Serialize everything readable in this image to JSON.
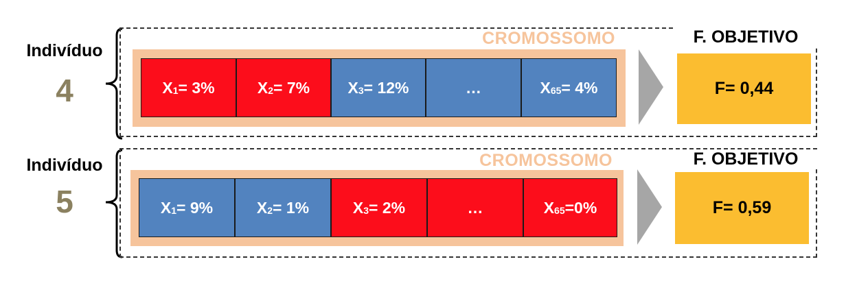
{
  "colors": {
    "red": "#fc0d1b",
    "blue": "#5283bf",
    "chromosome_bg": "#f6c49c",
    "objective": "#fbbd30",
    "number": "#8b8160"
  },
  "individuals": [
    {
      "label": "Indivíduo",
      "number": "4",
      "chromosome_title": "CROMOSSOMO",
      "objective_title": "F. OBJETIVO",
      "objective_value": "F= 0,44",
      "genes": [
        {
          "base": "X",
          "sub": "1",
          "rest": "= 3%",
          "color": "#fc0d1b"
        },
        {
          "base": "X",
          "sub": "2",
          "rest": "= 7%",
          "color": "#fc0d1b"
        },
        {
          "base": "X",
          "sub": "3",
          "rest": "= 12%",
          "color": "#5283bf"
        },
        {
          "base": "…",
          "sub": "",
          "rest": "",
          "color": "#5283bf"
        },
        {
          "base": "X",
          "sub": "65",
          "rest": "= 4%",
          "color": "#5283bf"
        }
      ]
    },
    {
      "label": "Indivíduo",
      "number": "5",
      "chromosome_title": "CROMOSSOMO",
      "objective_title": "F. OBJETIVO",
      "objective_value": "F= 0,59",
      "genes": [
        {
          "base": "X",
          "sub": "1",
          "rest": "= 9%",
          "color": "#5283bf"
        },
        {
          "base": "X",
          "sub": "2",
          "rest": "= 1%",
          "color": "#5283bf"
        },
        {
          "base": "X",
          "sub": "3",
          "rest": "= 2%",
          "color": "#fc0d1b"
        },
        {
          "base": "…",
          "sub": "",
          "rest": "",
          "color": "#fc0d1b"
        },
        {
          "base": "X",
          "sub": "65",
          "rest": "=0%",
          "color": "#fc0d1b"
        }
      ]
    }
  ]
}
